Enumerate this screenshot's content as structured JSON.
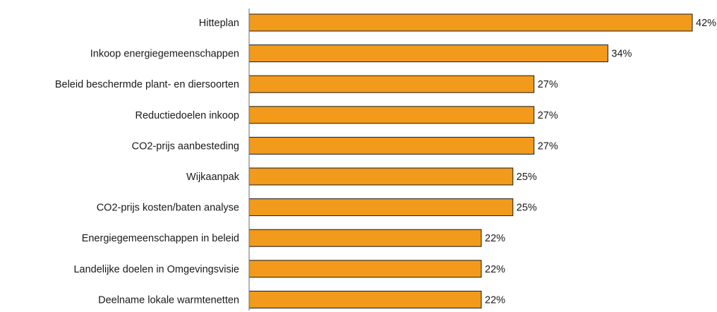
{
  "chart_data": {
    "type": "bar",
    "orientation": "horizontal",
    "title": "",
    "xlabel": "",
    "ylabel": "",
    "grid": false,
    "legend": "none",
    "bar_color": "#F29A1C",
    "bar_outline_color": "#1a1a1a",
    "value_format": "{v}%",
    "xlim": [
      0,
      42
    ],
    "categories": [
      "Hitteplan",
      "Inkoop energiegemeenschappen",
      "Beleid beschermde plant- en diersoorten",
      "Reductiedoelen inkoop",
      "CO2-prijs aanbesteding",
      "Wijkaanpak",
      "CO2-prijs kosten/baten analyse",
      "Energiegemeenschappen in beleid",
      "Landelijke doelen in Omgevingsvisie",
      "Deelname lokale warmtenetten"
    ],
    "values": [
      42,
      34,
      27,
      27,
      27,
      25,
      25,
      22,
      22,
      22
    ],
    "value_labels": [
      "42%",
      "34%",
      "27%",
      "27%",
      "27%",
      "25%",
      "25%",
      "22%",
      "22%",
      "22%"
    ]
  }
}
